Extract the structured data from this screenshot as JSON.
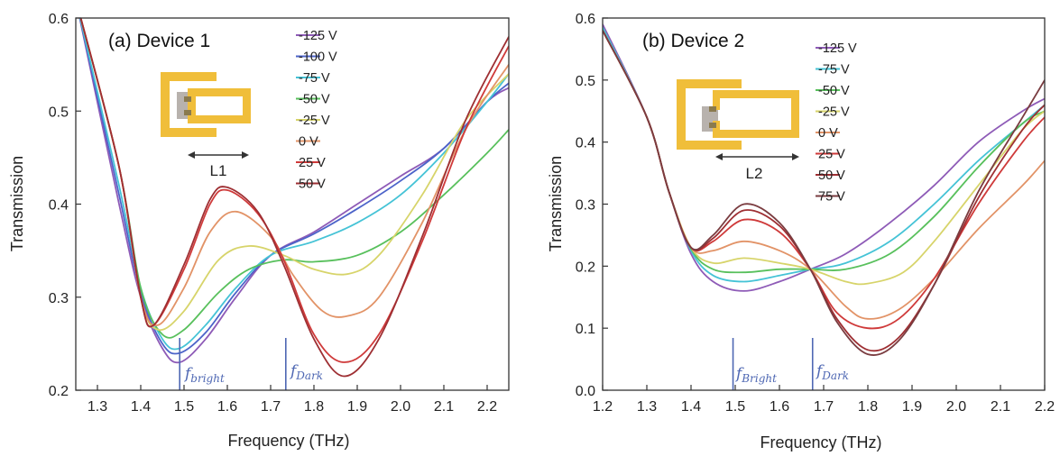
{
  "colors": {
    "v_m125": "#8e5bb7",
    "v_m100": "#4c63c9",
    "v_m75": "#45c3d6",
    "v_m50": "#58c05c",
    "v_m25": "#d7d46a",
    "v_0": "#e29367",
    "v_25": "#cf3a3a",
    "v_50": "#9e2f33",
    "v_75": "#7a3c40",
    "resonator": "#f0be3a",
    "pad": "#b8b2ad",
    "marker": "#4e67b3"
  },
  "chart_data": [
    {
      "type": "line",
      "title": "(a) Device 1",
      "xlabel": "Frequency (THz)",
      "ylabel": "Transmission",
      "xlim": [
        1.25,
        2.25
      ],
      "ylim": [
        0.2,
        0.6
      ],
      "xticks": [
        "1.3",
        "1.4",
        "1.5",
        "1.6",
        "1.7",
        "1.8",
        "1.9",
        "2.0",
        "2.1",
        "2.2"
      ],
      "yticks": [
        "0.2",
        "0.3",
        "0.4",
        "0.5",
        "0.6"
      ],
      "inset_label": "L1",
      "markers": [
        {
          "x": 1.49,
          "label": "f",
          "sub": "bright"
        },
        {
          "x": 1.735,
          "label": "f",
          "sub": "Dark"
        }
      ],
      "series": [
        {
          "name": "-125 V",
          "color_key": "v_m125",
          "x": [
            1.25,
            1.35,
            1.4,
            1.45,
            1.49,
            1.55,
            1.62,
            1.7,
            1.8,
            1.9,
            2.0,
            2.1,
            2.2,
            2.25
          ],
          "y": [
            0.62,
            0.4,
            0.3,
            0.245,
            0.23,
            0.255,
            0.3,
            0.345,
            0.37,
            0.4,
            0.43,
            0.46,
            0.51,
            0.525
          ]
        },
        {
          "name": "-100 V",
          "color_key": "v_m100",
          "x": [
            1.25,
            1.35,
            1.4,
            1.45,
            1.49,
            1.55,
            1.62,
            1.7,
            1.8,
            1.9,
            2.0,
            2.1,
            2.2,
            2.25
          ],
          "y": [
            0.62,
            0.41,
            0.305,
            0.25,
            0.24,
            0.262,
            0.305,
            0.345,
            0.368,
            0.395,
            0.425,
            0.46,
            0.51,
            0.53
          ]
        },
        {
          "name": "-75 V",
          "color_key": "v_m75",
          "x": [
            1.25,
            1.35,
            1.4,
            1.45,
            1.49,
            1.55,
            1.62,
            1.7,
            1.8,
            1.9,
            2.0,
            2.1,
            2.2,
            2.25
          ],
          "y": [
            0.62,
            0.42,
            0.31,
            0.255,
            0.245,
            0.27,
            0.31,
            0.345,
            0.36,
            0.38,
            0.41,
            0.455,
            0.51,
            0.54
          ]
        },
        {
          "name": "-50 V",
          "color_key": "v_m50",
          "x": [
            1.25,
            1.35,
            1.4,
            1.45,
            1.5,
            1.58,
            1.65,
            1.73,
            1.8,
            1.9,
            2.0,
            2.1,
            2.2,
            2.25
          ],
          "y": [
            0.62,
            0.44,
            0.31,
            0.26,
            0.265,
            0.305,
            0.33,
            0.34,
            0.338,
            0.345,
            0.37,
            0.41,
            0.455,
            0.48
          ]
        },
        {
          "name": "-25 V",
          "color_key": "v_m25",
          "x": [
            1.25,
            1.35,
            1.4,
            1.44,
            1.5,
            1.58,
            1.65,
            1.73,
            1.8,
            1.88,
            1.95,
            2.05,
            2.15,
            2.25
          ],
          "y": [
            0.62,
            0.44,
            0.3,
            0.265,
            0.285,
            0.34,
            0.355,
            0.345,
            0.33,
            0.325,
            0.345,
            0.41,
            0.49,
            0.54
          ]
        },
        {
          "name": "0 V",
          "color_key": "v_0",
          "x": [
            1.25,
            1.35,
            1.4,
            1.44,
            1.5,
            1.56,
            1.62,
            1.7,
            1.75,
            1.82,
            1.88,
            1.95,
            2.05,
            2.15,
            2.25
          ],
          "y": [
            0.62,
            0.44,
            0.3,
            0.27,
            0.31,
            0.37,
            0.392,
            0.365,
            0.325,
            0.285,
            0.28,
            0.3,
            0.38,
            0.48,
            0.55
          ]
        },
        {
          "name": "25 V",
          "color_key": "v_25",
          "x": [
            1.25,
            1.35,
            1.4,
            1.43,
            1.5,
            1.56,
            1.6,
            1.67,
            1.73,
            1.8,
            1.87,
            1.95,
            2.05,
            2.15,
            2.25
          ],
          "y": [
            0.62,
            0.44,
            0.3,
            0.27,
            0.33,
            0.4,
            0.415,
            0.39,
            0.34,
            0.26,
            0.23,
            0.26,
            0.36,
            0.48,
            0.57
          ]
        },
        {
          "name": "50 V",
          "color_key": "v_50",
          "x": [
            1.25,
            1.35,
            1.4,
            1.43,
            1.5,
            1.56,
            1.6,
            1.67,
            1.73,
            1.8,
            1.87,
            1.95,
            2.05,
            2.15,
            2.25
          ],
          "y": [
            0.62,
            0.44,
            0.3,
            0.27,
            0.335,
            0.405,
            0.418,
            0.392,
            0.335,
            0.255,
            0.215,
            0.255,
            0.365,
            0.49,
            0.58
          ]
        }
      ]
    },
    {
      "type": "line",
      "title": "(b) Device 2",
      "xlabel": "Frequency (THz)",
      "ylabel": "Transmission",
      "xlim": [
        1.2,
        2.2
      ],
      "ylim": [
        0.0,
        0.6
      ],
      "xticks": [
        "1.2",
        "1.3",
        "1.4",
        "1.5",
        "1.6",
        "1.7",
        "1.8",
        "1.9",
        "2.0",
        "2.1",
        "2.2"
      ],
      "yticks": [
        "0.0",
        "0.1",
        "0.2",
        "0.3",
        "0.4",
        "0.5",
        "0.6"
      ],
      "inset_label": "L2",
      "markers": [
        {
          "x": 1.495,
          "label": "f",
          "sub": "Bright"
        },
        {
          "x": 1.675,
          "label": "f",
          "sub": "Dark"
        }
      ],
      "series": [
        {
          "name": "-125 V",
          "color_key": "v_m125",
          "x": [
            1.2,
            1.3,
            1.35,
            1.4,
            1.45,
            1.52,
            1.6,
            1.67,
            1.75,
            1.85,
            1.95,
            2.05,
            2.15,
            2.2
          ],
          "y": [
            0.59,
            0.44,
            0.32,
            0.22,
            0.175,
            0.16,
            0.175,
            0.195,
            0.22,
            0.27,
            0.33,
            0.4,
            0.45,
            0.47
          ]
        },
        {
          "name": "-75 V",
          "color_key": "v_m75",
          "x": [
            1.2,
            1.3,
            1.35,
            1.4,
            1.45,
            1.52,
            1.6,
            1.67,
            1.75,
            1.85,
            1.95,
            2.05,
            2.15,
            2.2
          ],
          "y": [
            0.585,
            0.44,
            0.32,
            0.225,
            0.185,
            0.175,
            0.185,
            0.195,
            0.205,
            0.24,
            0.3,
            0.37,
            0.43,
            0.46
          ]
        },
        {
          "name": "-50 V",
          "color_key": "v_m50",
          "x": [
            1.2,
            1.3,
            1.35,
            1.4,
            1.45,
            1.52,
            1.6,
            1.67,
            1.75,
            1.85,
            1.95,
            2.05,
            2.15,
            2.2
          ],
          "y": [
            0.58,
            0.44,
            0.32,
            0.228,
            0.195,
            0.19,
            0.195,
            0.195,
            0.195,
            0.22,
            0.28,
            0.36,
            0.43,
            0.45
          ]
        },
        {
          "name": "-25 V",
          "color_key": "v_m25",
          "x": [
            1.2,
            1.3,
            1.35,
            1.4,
            1.45,
            1.52,
            1.6,
            1.67,
            1.75,
            1.8,
            1.88,
            1.95,
            2.05,
            2.15,
            2.2
          ],
          "y": [
            0.58,
            0.44,
            0.32,
            0.23,
            0.205,
            0.213,
            0.205,
            0.195,
            0.175,
            0.172,
            0.19,
            0.24,
            0.33,
            0.42,
            0.45
          ]
        },
        {
          "name": "0 V",
          "color_key": "v_0",
          "x": [
            1.2,
            1.3,
            1.35,
            1.4,
            1.45,
            1.52,
            1.6,
            1.67,
            1.75,
            1.8,
            1.87,
            1.95,
            2.05,
            2.15,
            2.2
          ],
          "y": [
            0.58,
            0.44,
            0.32,
            0.23,
            0.225,
            0.24,
            0.225,
            0.195,
            0.135,
            0.115,
            0.13,
            0.18,
            0.26,
            0.33,
            0.37
          ]
        },
        {
          "name": "25 V",
          "color_key": "v_25",
          "x": [
            1.2,
            1.3,
            1.35,
            1.4,
            1.45,
            1.52,
            1.6,
            1.67,
            1.73,
            1.8,
            1.87,
            1.95,
            2.05,
            2.15,
            2.2
          ],
          "y": [
            0.58,
            0.44,
            0.32,
            0.23,
            0.24,
            0.275,
            0.255,
            0.195,
            0.125,
            0.1,
            0.115,
            0.18,
            0.3,
            0.4,
            0.44
          ]
        },
        {
          "name": "50 V",
          "color_key": "v_50",
          "x": [
            1.2,
            1.3,
            1.35,
            1.4,
            1.45,
            1.52,
            1.6,
            1.67,
            1.73,
            1.8,
            1.87,
            1.95,
            2.05,
            2.15,
            2.2
          ],
          "y": [
            0.58,
            0.44,
            0.32,
            0.23,
            0.245,
            0.29,
            0.265,
            0.195,
            0.115,
            0.065,
            0.085,
            0.17,
            0.31,
            0.42,
            0.46
          ]
        },
        {
          "name": "75 V",
          "color_key": "v_75",
          "x": [
            1.2,
            1.3,
            1.35,
            1.4,
            1.45,
            1.52,
            1.6,
            1.67,
            1.73,
            1.8,
            1.87,
            1.95,
            2.05,
            2.15,
            2.2
          ],
          "y": [
            0.58,
            0.44,
            0.32,
            0.23,
            0.25,
            0.3,
            0.27,
            0.195,
            0.11,
            0.058,
            0.08,
            0.17,
            0.32,
            0.44,
            0.5
          ]
        }
      ]
    }
  ]
}
